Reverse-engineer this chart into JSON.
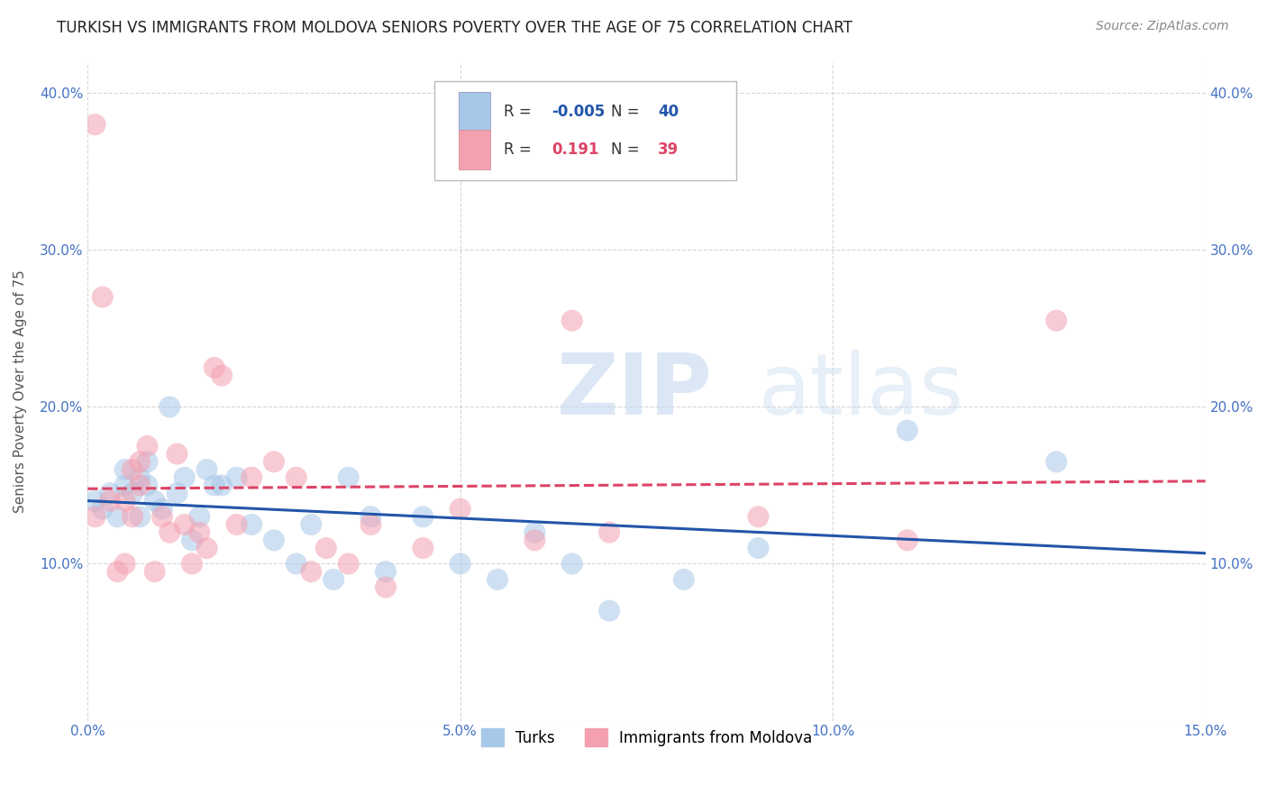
{
  "title": "TURKISH VS IMMIGRANTS FROM MOLDOVA SENIORS POVERTY OVER THE AGE OF 75 CORRELATION CHART",
  "source": "Source: ZipAtlas.com",
  "ylabel": "Seniors Poverty Over the Age of 75",
  "xlim": [
    0.0,
    0.15
  ],
  "ylim": [
    0.0,
    0.42
  ],
  "xticks": [
    0.0,
    0.05,
    0.1,
    0.15
  ],
  "xticklabels": [
    "0.0%",
    "5.0%",
    "10.0%",
    "15.0%"
  ],
  "yticks": [
    0.0,
    0.1,
    0.2,
    0.3,
    0.4
  ],
  "yticklabels": [
    "",
    "10.0%",
    "20.0%",
    "30.0%",
    "40.0%"
  ],
  "blue_R": -0.005,
  "blue_N": 40,
  "pink_R": 0.191,
  "pink_N": 39,
  "blue_color": "#a8c8e8",
  "pink_color": "#f4a0b0",
  "blue_line_color": "#2255aa",
  "pink_line_color": "#dd4466",
  "background_color": "#ffffff",
  "grid_color": "#cccccc",
  "blue_x": [
    0.001,
    0.002,
    0.003,
    0.004,
    0.005,
    0.005,
    0.006,
    0.007,
    0.007,
    0.008,
    0.008,
    0.009,
    0.01,
    0.011,
    0.012,
    0.013,
    0.014,
    0.015,
    0.016,
    0.017,
    0.018,
    0.02,
    0.022,
    0.025,
    0.028,
    0.03,
    0.033,
    0.035,
    0.038,
    0.04,
    0.045,
    0.05,
    0.055,
    0.06,
    0.065,
    0.07,
    0.08,
    0.09,
    0.11,
    0.13
  ],
  "blue_y": [
    0.14,
    0.135,
    0.145,
    0.13,
    0.15,
    0.16,
    0.145,
    0.155,
    0.13,
    0.15,
    0.165,
    0.14,
    0.135,
    0.2,
    0.145,
    0.155,
    0.115,
    0.13,
    0.16,
    0.15,
    0.15,
    0.155,
    0.125,
    0.115,
    0.1,
    0.125,
    0.09,
    0.155,
    0.13,
    0.095,
    0.13,
    0.1,
    0.09,
    0.12,
    0.1,
    0.07,
    0.09,
    0.11,
    0.185,
    0.165
  ],
  "pink_x": [
    0.001,
    0.001,
    0.002,
    0.003,
    0.004,
    0.005,
    0.005,
    0.006,
    0.006,
    0.007,
    0.007,
    0.008,
    0.009,
    0.01,
    0.011,
    0.012,
    0.013,
    0.014,
    0.015,
    0.016,
    0.017,
    0.018,
    0.02,
    0.022,
    0.025,
    0.028,
    0.03,
    0.032,
    0.035,
    0.038,
    0.04,
    0.045,
    0.05,
    0.06,
    0.065,
    0.07,
    0.09,
    0.11,
    0.13
  ],
  "pink_y": [
    0.13,
    0.38,
    0.27,
    0.14,
    0.095,
    0.14,
    0.1,
    0.16,
    0.13,
    0.15,
    0.165,
    0.175,
    0.095,
    0.13,
    0.12,
    0.17,
    0.125,
    0.1,
    0.12,
    0.11,
    0.225,
    0.22,
    0.125,
    0.155,
    0.165,
    0.155,
    0.095,
    0.11,
    0.1,
    0.125,
    0.085,
    0.11,
    0.135,
    0.115,
    0.255,
    0.12,
    0.13,
    0.115,
    0.255
  ],
  "watermark_zip": "ZIP",
  "watermark_atlas": "atlas",
  "title_fontsize": 12,
  "axis_label_fontsize": 11,
  "tick_fontsize": 11,
  "legend_fontsize": 12
}
